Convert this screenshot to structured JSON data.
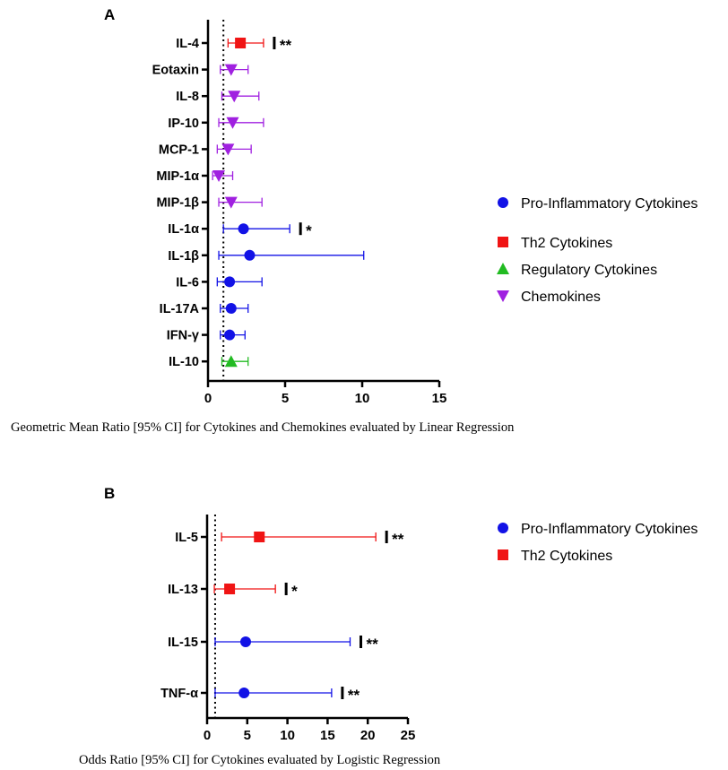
{
  "colors": {
    "pro_inflammatory": "#1212e6",
    "th2": "#f01414",
    "regulatory": "#22bb22",
    "chemokines": "#a020e0"
  },
  "chart_data": [
    {
      "panel": "A",
      "type": "scatter",
      "caption": "Geometric Mean Ratio [95% CI] for Cytokines and Chemokines evaluated by Linear Regression",
      "orientation": "horizontal forest plot",
      "xlim": [
        0,
        15
      ],
      "xticks": [
        "0",
        "5",
        "10",
        "15"
      ],
      "reference_line": 1,
      "legend_position": "right",
      "legend": [
        {
          "name": "Pro-Inflammatory Cytokines",
          "marker": "circle",
          "color_key": "pro_inflammatory"
        },
        {
          "name": "Th2 Cytokines",
          "marker": "square",
          "color_key": "th2"
        },
        {
          "name": "Regulatory Cytokines",
          "marker": "triangle-up",
          "color_key": "regulatory"
        },
        {
          "name": "Chemokines",
          "marker": "triangle-down",
          "color_key": "chemokines"
        }
      ],
      "rows": [
        {
          "label": "IL-4",
          "group": "th2",
          "estimate": 2.1,
          "lower": 1.3,
          "upper": 3.6,
          "sig": "**"
        },
        {
          "label": "Eotaxin",
          "group": "chemokines",
          "estimate": 1.5,
          "lower": 0.8,
          "upper": 2.6,
          "sig": ""
        },
        {
          "label": "IL-8",
          "group": "chemokines",
          "estimate": 1.7,
          "lower": 0.9,
          "upper": 3.3,
          "sig": ""
        },
        {
          "label": "IP-10",
          "group": "chemokines",
          "estimate": 1.6,
          "lower": 0.7,
          "upper": 3.6,
          "sig": ""
        },
        {
          "label": "MCP-1",
          "group": "chemokines",
          "estimate": 1.3,
          "lower": 0.6,
          "upper": 2.8,
          "sig": ""
        },
        {
          "label": "MIP-1α",
          "group": "chemokines",
          "estimate": 0.7,
          "lower": 0.3,
          "upper": 1.6,
          "sig": ""
        },
        {
          "label": "MIP-1β",
          "group": "chemokines",
          "estimate": 1.5,
          "lower": 0.7,
          "upper": 3.5,
          "sig": ""
        },
        {
          "label": "IL-1α",
          "group": "pro_inflammatory",
          "estimate": 2.3,
          "lower": 1.0,
          "upper": 5.3,
          "sig": "*"
        },
        {
          "label": "IL-1β",
          "group": "pro_inflammatory",
          "estimate": 2.7,
          "lower": 0.7,
          "upper": 10.1,
          "sig": ""
        },
        {
          "label": "IL-6",
          "group": "pro_inflammatory",
          "estimate": 1.4,
          "lower": 0.6,
          "upper": 3.5,
          "sig": ""
        },
        {
          "label": "IL-17A",
          "group": "pro_inflammatory",
          "estimate": 1.5,
          "lower": 0.8,
          "upper": 2.6,
          "sig": ""
        },
        {
          "label": "IFN-γ",
          "group": "pro_inflammatory",
          "estimate": 1.4,
          "lower": 0.8,
          "upper": 2.4,
          "sig": ""
        },
        {
          "label": "IL-10",
          "group": "regulatory",
          "estimate": 1.5,
          "lower": 0.9,
          "upper": 2.6,
          "sig": ""
        }
      ]
    },
    {
      "panel": "B",
      "type": "scatter",
      "caption": "Odds Ratio [95% CI] for Cytokines evaluated by Logistic Regression",
      "orientation": "horizontal forest plot",
      "xlim": [
        0,
        25
      ],
      "xticks": [
        "0",
        "5",
        "10",
        "15",
        "20",
        "25"
      ],
      "reference_line": 1,
      "legend_position": "top-right",
      "legend": [
        {
          "name": "Pro-Inflammatory Cytokines",
          "marker": "circle",
          "color_key": "pro_inflammatory"
        },
        {
          "name": "Th2 Cytokines",
          "marker": "square",
          "color_key": "th2"
        }
      ],
      "rows": [
        {
          "label": "IL-5",
          "group": "th2",
          "estimate": 6.5,
          "lower": 1.8,
          "upper": 21.0,
          "sig": "**"
        },
        {
          "label": "IL-13",
          "group": "th2",
          "estimate": 2.8,
          "lower": 0.9,
          "upper": 8.5,
          "sig": "*"
        },
        {
          "label": "IL-15",
          "group": "pro_inflammatory",
          "estimate": 4.8,
          "lower": 1.0,
          "upper": 17.8,
          "sig": "**"
        },
        {
          "label": "TNF-α",
          "group": "pro_inflammatory",
          "estimate": 4.6,
          "lower": 1.0,
          "upper": 15.5,
          "sig": "**"
        }
      ]
    }
  ]
}
